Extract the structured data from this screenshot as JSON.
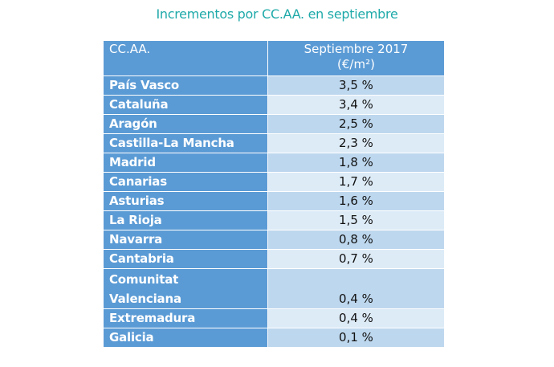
{
  "title": "Incrementos por CC.AA. en septiembre",
  "table": {
    "headers": {
      "region": "CC.AA.",
      "value_line1": "Septiembre 2017",
      "value_line2": "(€/m²)"
    },
    "rows": [
      {
        "region": "País Vasco",
        "value": "3,5 %"
      },
      {
        "region": "Cataluña",
        "value": "3,4 %"
      },
      {
        "region": "Aragón",
        "value": "2,5 %"
      },
      {
        "region": "Castilla-La Mancha",
        "value": "2,3 %"
      },
      {
        "region": "Madrid",
        "value": "1,8 %"
      },
      {
        "region": "Canarias",
        "value": "1,7 %"
      },
      {
        "region": "Asturias",
        "value": "1,6 %"
      },
      {
        "region": "La Rioja",
        "value": "1,5 %"
      },
      {
        "region": "Navarra",
        "value": "0,8 %"
      },
      {
        "region": "Cantabria",
        "value": "0,7 %"
      },
      {
        "region": "Comunitat Valenciana",
        "value": "0,4 %"
      },
      {
        "region": "Extremadura",
        "value": "0,4 %"
      },
      {
        "region": "Galicia",
        "value": "0,1 %"
      }
    ]
  },
  "colors": {
    "header": "#5b9bd5",
    "row_odd": "#bdd7ee",
    "row_even": "#ddebf7",
    "title": "#1fa9a9"
  }
}
